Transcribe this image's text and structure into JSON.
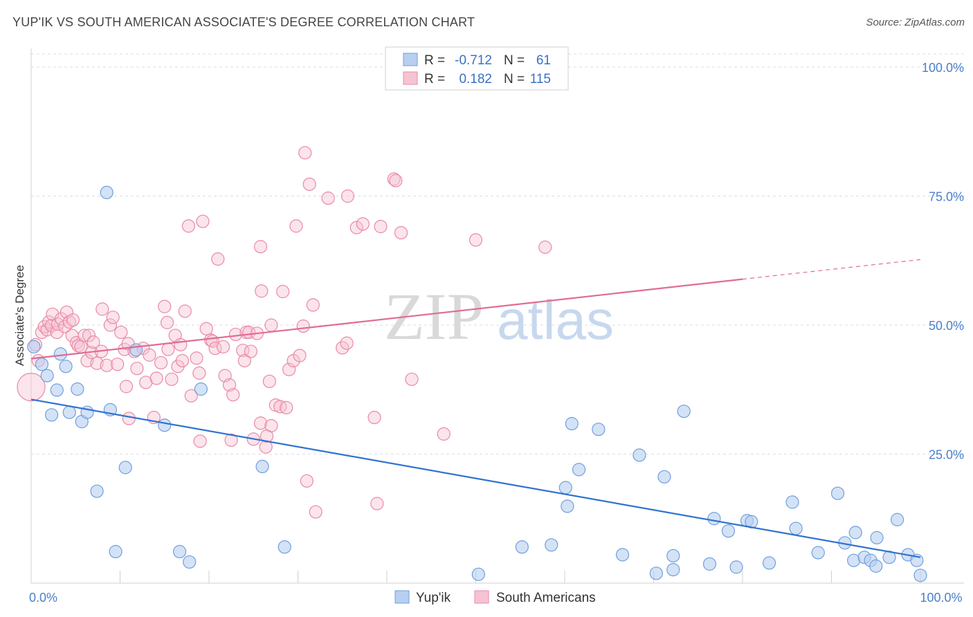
{
  "title": "YUP'IK VS SOUTH AMERICAN ASSOCIATE'S DEGREE CORRELATION CHART",
  "source": "Source: ZipAtlas.com",
  "watermark": {
    "zip": "ZIP",
    "atlas": "atlas"
  },
  "colors": {
    "blue": "#6f9fdd",
    "blue_fill": "#b7cff0",
    "blue_line": "#2f72d0",
    "pink": "#e88aa6",
    "pink_fill": "#f6c3d3",
    "pink_line": "#e06b93"
  },
  "chart_data": {
    "type": "scatter",
    "ylabel": "Associate's Degree",
    "xlim": [
      0,
      100
    ],
    "ylim": [
      0,
      100
    ],
    "y_ticks": [
      {
        "value": 100,
        "label": "100.0%"
      },
      {
        "value": 75,
        "label": "75.0%"
      },
      {
        "value": 50,
        "label": "50.0%"
      },
      {
        "value": 25,
        "label": "25.0%"
      }
    ],
    "x_ticks": [
      {
        "value": 0,
        "label": "0.0%"
      },
      {
        "value": 100,
        "label": "100.0%"
      }
    ],
    "legend": [
      {
        "r_label": "R =",
        "r_value": "-0.712",
        "n_label": "N =",
        "n_value": "61"
      },
      {
        "r_label": "R =",
        "r_value": "0.182",
        "n_label": "N =",
        "n_value": "115"
      }
    ],
    "series": [
      {
        "name": "Yup'ik",
        "trend": {
          "x0": 0,
          "y0": 35.6,
          "x1": 100,
          "y1": 5.0
        },
        "points": [
          [
            0.3,
            45.8
          ],
          [
            1.2,
            42.4
          ],
          [
            1.8,
            40.2
          ],
          [
            2.3,
            32.6
          ],
          [
            2.9,
            37.4
          ],
          [
            3.3,
            44.4
          ],
          [
            3.9,
            42.0
          ],
          [
            4.3,
            33.1
          ],
          [
            5.2,
            37.6
          ],
          [
            5.7,
            31.3
          ],
          [
            6.3,
            33.1
          ],
          [
            7.4,
            17.8
          ],
          [
            8.5,
            75.7
          ],
          [
            8.9,
            33.6
          ],
          [
            9.5,
            6.1
          ],
          [
            10.6,
            22.4
          ],
          [
            11.8,
            45.2
          ],
          [
            15.0,
            30.6
          ],
          [
            16.7,
            6.1
          ],
          [
            17.8,
            4.1
          ],
          [
            19.1,
            37.6
          ],
          [
            26.0,
            22.6
          ],
          [
            28.5,
            7.0
          ],
          [
            50.3,
            1.7
          ],
          [
            55.2,
            7.0
          ],
          [
            58.5,
            7.4
          ],
          [
            60.1,
            18.5
          ],
          [
            60.3,
            14.9
          ],
          [
            60.8,
            30.9
          ],
          [
            61.6,
            22.0
          ],
          [
            63.8,
            29.8
          ],
          [
            66.5,
            5.5
          ],
          [
            68.4,
            24.8
          ],
          [
            70.3,
            1.9
          ],
          [
            71.2,
            20.6
          ],
          [
            72.2,
            2.6
          ],
          [
            72.2,
            5.3
          ],
          [
            73.4,
            33.3
          ],
          [
            76.3,
            3.7
          ],
          [
            76.8,
            12.5
          ],
          [
            78.4,
            10.1
          ],
          [
            79.3,
            3.1
          ],
          [
            80.5,
            12.1
          ],
          [
            81.0,
            11.9
          ],
          [
            83.0,
            3.9
          ],
          [
            85.6,
            15.7
          ],
          [
            86.0,
            10.6
          ],
          [
            88.5,
            5.9
          ],
          [
            90.7,
            17.4
          ],
          [
            91.5,
            7.8
          ],
          [
            92.5,
            4.4
          ],
          [
            92.7,
            9.8
          ],
          [
            93.7,
            5.0
          ],
          [
            94.4,
            4.4
          ],
          [
            95.0,
            3.3
          ],
          [
            95.1,
            8.8
          ],
          [
            96.5,
            5.0
          ],
          [
            97.4,
            12.3
          ],
          [
            98.6,
            5.5
          ],
          [
            99.6,
            4.4
          ],
          [
            100.0,
            1.5
          ]
        ]
      },
      {
        "name": "South Americans",
        "trend": {
          "x0": 0,
          "y0": 43.5,
          "x1": 80.0,
          "y1": 58.9,
          "x2": 100,
          "y2": 62.7
        },
        "points": [
          [
            0.0,
            38.0
          ],
          [
            0.5,
            46.2
          ],
          [
            0.8,
            43.1
          ],
          [
            1.2,
            48.6
          ],
          [
            1.5,
            49.7
          ],
          [
            1.8,
            49.1
          ],
          [
            2.0,
            50.6
          ],
          [
            2.3,
            49.9
          ],
          [
            2.4,
            52.1
          ],
          [
            2.9,
            48.6
          ],
          [
            3.0,
            50.2
          ],
          [
            3.4,
            51.2
          ],
          [
            3.8,
            49.7
          ],
          [
            4.0,
            52.5
          ],
          [
            4.3,
            50.6
          ],
          [
            4.6,
            48.0
          ],
          [
            4.7,
            51.0
          ],
          [
            5.1,
            46.6
          ],
          [
            5.3,
            46.0
          ],
          [
            5.6,
            45.8
          ],
          [
            6.0,
            48.0
          ],
          [
            6.3,
            43.1
          ],
          [
            6.5,
            48.0
          ],
          [
            6.8,
            44.7
          ],
          [
            7.0,
            46.7
          ],
          [
            7.4,
            42.6
          ],
          [
            7.9,
            44.9
          ],
          [
            8.0,
            53.1
          ],
          [
            8.5,
            42.2
          ],
          [
            8.9,
            50.0
          ],
          [
            9.2,
            51.5
          ],
          [
            9.7,
            42.4
          ],
          [
            10.1,
            48.6
          ],
          [
            10.5,
            45.3
          ],
          [
            10.7,
            38.1
          ],
          [
            10.9,
            46.4
          ],
          [
            11.0,
            31.9
          ],
          [
            11.6,
            44.9
          ],
          [
            11.9,
            41.6
          ],
          [
            12.6,
            45.5
          ],
          [
            12.9,
            38.9
          ],
          [
            13.3,
            44.2
          ],
          [
            13.8,
            32.1
          ],
          [
            14.1,
            39.7
          ],
          [
            14.6,
            42.7
          ],
          [
            15.0,
            53.6
          ],
          [
            15.3,
            50.5
          ],
          [
            15.4,
            45.3
          ],
          [
            15.8,
            39.5
          ],
          [
            16.2,
            48.0
          ],
          [
            16.5,
            42.0
          ],
          [
            16.8,
            46.2
          ],
          [
            17.0,
            43.1
          ],
          [
            17.3,
            52.7
          ],
          [
            17.7,
            69.2
          ],
          [
            18.0,
            36.3
          ],
          [
            18.6,
            43.6
          ],
          [
            18.9,
            40.7
          ],
          [
            19.0,
            27.5
          ],
          [
            19.3,
            70.1
          ],
          [
            19.7,
            49.3
          ],
          [
            20.2,
            47.1
          ],
          [
            20.4,
            46.9
          ],
          [
            20.7,
            45.5
          ],
          [
            21.0,
            62.8
          ],
          [
            21.6,
            45.8
          ],
          [
            21.8,
            40.2
          ],
          [
            22.3,
            38.4
          ],
          [
            22.5,
            27.7
          ],
          [
            22.7,
            36.5
          ],
          [
            23.0,
            48.2
          ],
          [
            23.8,
            45.1
          ],
          [
            24.0,
            43.1
          ],
          [
            24.2,
            48.6
          ],
          [
            24.5,
            48.6
          ],
          [
            24.7,
            44.9
          ],
          [
            25.0,
            27.9
          ],
          [
            25.4,
            48.4
          ],
          [
            25.8,
            31.0
          ],
          [
            26.4,
            26.4
          ],
          [
            26.5,
            28.5
          ],
          [
            26.8,
            39.1
          ],
          [
            27.0,
            30.5
          ],
          [
            25.8,
            65.2
          ],
          [
            25.9,
            56.6
          ],
          [
            27.0,
            50.0
          ],
          [
            27.5,
            34.5
          ],
          [
            28.0,
            34.2
          ],
          [
            28.3,
            56.5
          ],
          [
            28.7,
            34.0
          ],
          [
            29.0,
            41.4
          ],
          [
            29.5,
            43.1
          ],
          [
            29.8,
            69.2
          ],
          [
            30.2,
            44.1
          ],
          [
            30.6,
            49.8
          ],
          [
            30.8,
            83.4
          ],
          [
            31.0,
            19.8
          ],
          [
            31.3,
            77.3
          ],
          [
            31.7,
            53.9
          ],
          [
            32.0,
            13.8
          ],
          [
            33.4,
            74.6
          ],
          [
            35.0,
            45.6
          ],
          [
            35.5,
            46.5
          ],
          [
            35.6,
            75.0
          ],
          [
            36.6,
            68.9
          ],
          [
            37.3,
            69.6
          ],
          [
            38.6,
            32.1
          ],
          [
            38.9,
            15.4
          ],
          [
            39.3,
            69.1
          ],
          [
            40.8,
            78.3
          ],
          [
            41.0,
            78.0
          ],
          [
            41.6,
            67.9
          ],
          [
            42.8,
            39.5
          ],
          [
            46.4,
            28.9
          ],
          [
            50.0,
            66.5
          ],
          [
            57.8,
            65.1
          ]
        ]
      }
    ]
  }
}
